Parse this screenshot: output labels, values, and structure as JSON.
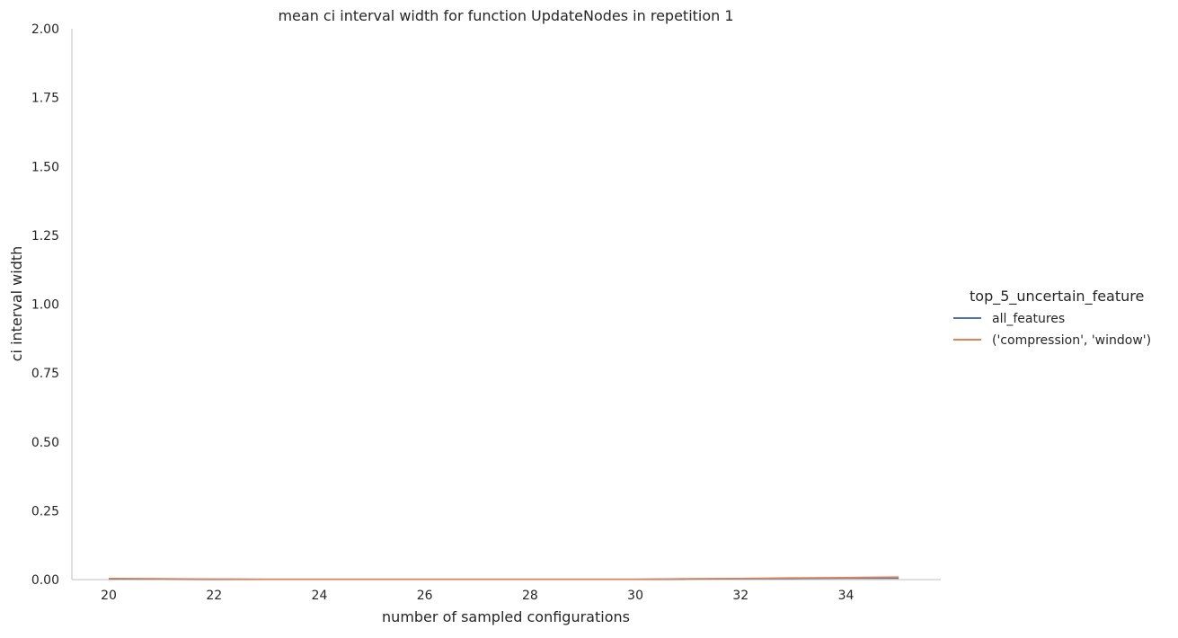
{
  "chart_data": {
    "type": "line",
    "title": "mean ci interval width for function UpdateNodes in repetition 1",
    "xlabel": "number of sampled configurations",
    "ylabel": "ci interval width",
    "xlim": [
      19.3,
      35.8
    ],
    "ylim": [
      0,
      2
    ],
    "xticks": [
      20,
      22,
      24,
      26,
      28,
      30,
      32,
      34
    ],
    "xtick_labels": [
      "20",
      "22",
      "24",
      "26",
      "28",
      "30",
      "32",
      "34"
    ],
    "yticks": [
      0,
      0.25,
      0.5,
      0.75,
      1.0,
      1.25,
      1.5,
      1.75,
      2.0
    ],
    "ytick_labels": [
      "0.00",
      "0.25",
      "0.50",
      "0.75",
      "1.00",
      "1.25",
      "1.50",
      "1.75",
      "2.00"
    ],
    "grid": false,
    "legend": {
      "title": "top_5_uncertain_feature",
      "placement": "right-outside"
    },
    "series": [
      {
        "name": "all_features",
        "color": "#4c72b0",
        "x": [
          20,
          21,
          22,
          23,
          24,
          25,
          26,
          27,
          28,
          29,
          30,
          31,
          32,
          33,
          34,
          35
        ],
        "y": [
          0.002,
          0.002,
          0.001,
          0.001,
          0.001,
          0.001,
          0.001,
          0.001,
          0.001,
          0.001,
          0.001,
          0.002,
          0.003,
          0.004,
          0.005,
          0.005
        ]
      },
      {
        "name": "('compression', 'window')",
        "color": "#dd8452",
        "x": [
          20,
          21,
          22,
          23,
          24,
          25,
          26,
          27,
          28,
          29,
          30,
          31,
          32,
          33,
          34,
          35
        ],
        "y": [
          0.004,
          0.003,
          0.002,
          0.001,
          0.001,
          0.001,
          0.001,
          0.001,
          0.001,
          0.001,
          0.001,
          0.003,
          0.004,
          0.006,
          0.007,
          0.009
        ]
      }
    ]
  }
}
